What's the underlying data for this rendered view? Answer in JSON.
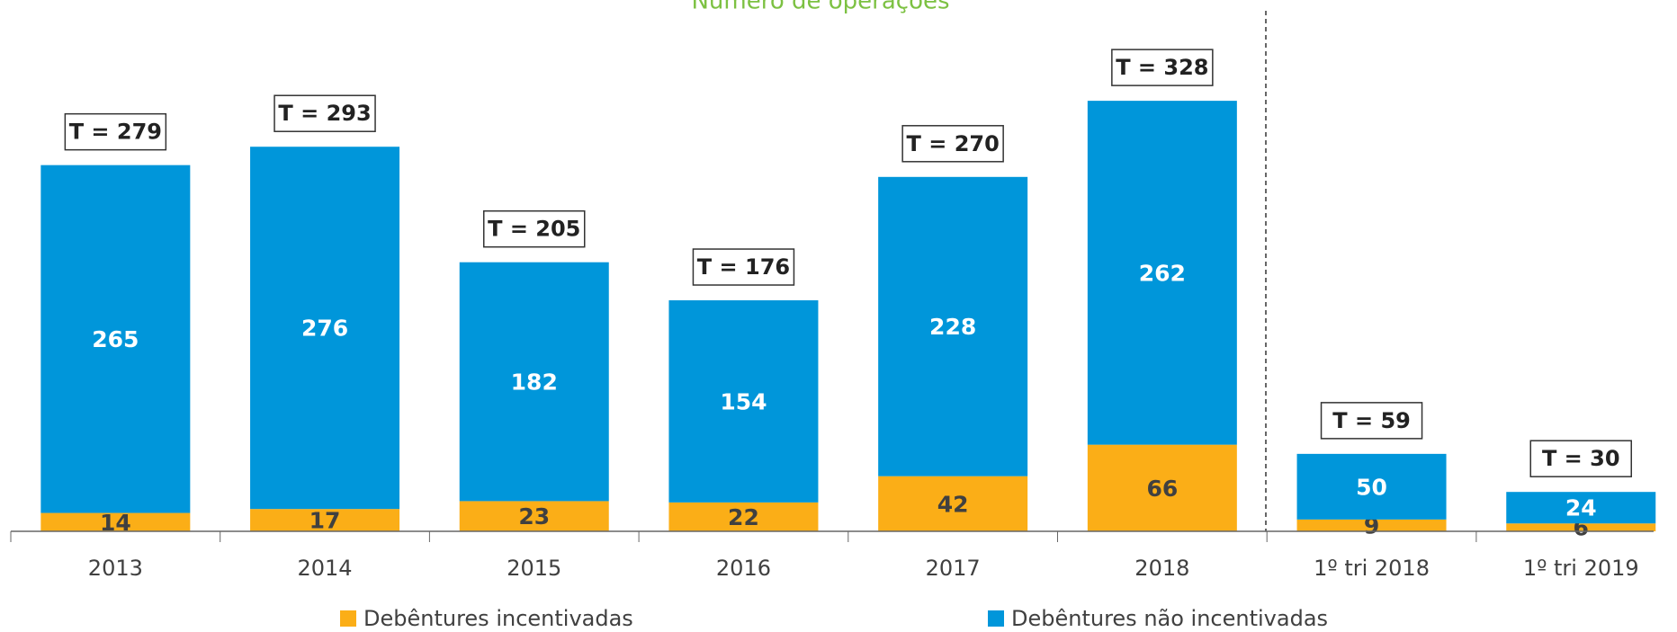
{
  "chart_data": {
    "type": "stacked_bar",
    "title": "Número de operações",
    "categories": [
      "2013",
      "2014",
      "2015",
      "2016",
      "2017",
      "2018",
      "1º tri 2018",
      "1º tri 2019"
    ],
    "series": [
      {
        "name": "Debêntures incentivadas",
        "color": "#fbae17",
        "values": [
          14,
          17,
          23,
          22,
          42,
          66,
          9,
          6
        ]
      },
      {
        "name": "Debêntures não incentivadas",
        "color": "#0096da",
        "values": [
          265,
          276,
          182,
          154,
          228,
          262,
          50,
          24
        ]
      }
    ],
    "totals": {
      "values": [
        279,
        293,
        205,
        176,
        270,
        328,
        59,
        30
      ],
      "value_labels": [
        "T = 279",
        "T = 293",
        "T = 205",
        "T = 176",
        "T = 270",
        "T = 328",
        "T = 59",
        "T = 30"
      ]
    },
    "ylim": [
      0,
      400
    ],
    "legend": "bottom"
  }
}
